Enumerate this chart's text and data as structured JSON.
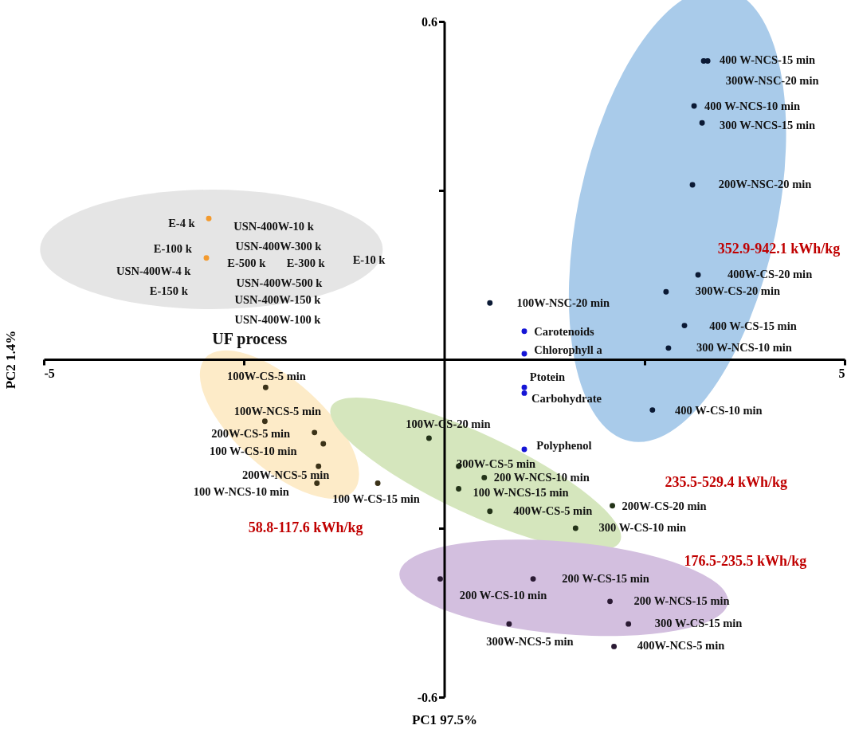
{
  "chart_data": {
    "type": "scatter",
    "xlabel": "PC1 97.5%",
    "ylabel": "PC2 1.4%",
    "xlim": [
      -5,
      5
    ],
    "ylim": [
      -0.6,
      0.6
    ],
    "xticks": [
      -5,
      {
        "value": -2.5,
        "label": null
      },
      {
        "value": 2.5,
        "label": null
      },
      5
    ],
    "yticks": [
      -0.6,
      {
        "value": -0.3,
        "label": null
      },
      {
        "value": 0.3,
        "label": null
      },
      0.6
    ],
    "marker": "circle",
    "series": [
      {
        "color": "#f39a2e",
        "x": [
          -2.94,
          -2.97
        ],
        "values": [
          0.25,
          0.18
        ]
      },
      {
        "color": "#1515d6",
        "x": [
          1.0,
          1.0,
          1.0,
          1.0,
          1.0
        ],
        "values": [
          0.05,
          0.01,
          -0.05,
          -0.06,
          -0.16
        ]
      },
      {
        "color": "#0b1a35",
        "x": [
          3.24,
          3.29,
          3.12,
          3.22,
          3.1,
          3.17,
          2.77,
          3.0,
          2.8,
          2.6,
          0.57
        ],
        "values": [
          0.53,
          0.53,
          0.45,
          0.42,
          0.31,
          0.15,
          0.12,
          0.06,
          0.02,
          -0.09,
          0.1
        ]
      },
      {
        "color": "#3b3218",
        "x": [
          -2.23,
          -2.24,
          -1.62,
          -1.51,
          -1.57,
          -1.59,
          -0.83
        ],
        "values": [
          -0.05,
          -0.11,
          -0.13,
          -0.15,
          -0.19,
          -0.22,
          -0.22
        ]
      },
      {
        "color": "#233318",
        "x": [
          -0.19,
          0.18,
          0.5,
          0.18,
          0.57,
          2.1,
          1.64
        ],
        "values": [
          -0.14,
          -0.19,
          -0.21,
          -0.23,
          -0.27,
          -0.26,
          -0.3
        ]
      },
      {
        "color": "#2a1a33",
        "x": [
          1.11,
          -0.05,
          2.07,
          0.81,
          2.3,
          2.12
        ],
        "values": [
          -0.39,
          -0.39,
          -0.43,
          -0.47,
          -0.47,
          -0.51
        ]
      }
    ],
    "annotations": [
      {
        "text": "400 W-NCS-15 min",
        "x": 3.24,
        "y": 0.53
      },
      {
        "text": "300W-NSC-20 min",
        "x": 3.29,
        "y": 0.53
      },
      {
        "text": "400 W-NCS-10 min",
        "x": 3.12,
        "y": 0.45
      },
      {
        "text": "300 W-NCS-15 min",
        "x": 3.22,
        "y": 0.42
      },
      {
        "text": "200W-NSC-20 min",
        "x": 3.1,
        "y": 0.31
      },
      {
        "text": "400W-CS-20 min",
        "x": 3.17,
        "y": 0.15
      },
      {
        "text": "300W-CS-20 min",
        "x": 2.77,
        "y": 0.12
      },
      {
        "text": "400 W-CS-15 min",
        "x": 3.0,
        "y": 0.06
      },
      {
        "text": "300 W-NCS-10 min",
        "x": 2.8,
        "y": 0.02
      },
      {
        "text": "400 W-CS-10 min",
        "x": 2.6,
        "y": -0.09
      },
      {
        "text": "100W-NSC-20 min",
        "x": 0.57,
        "y": 0.1
      },
      {
        "text": "Carotenoids",
        "x": 1.0,
        "y": 0.05
      },
      {
        "text": "Chlorophyll a",
        "x": 1.0,
        "y": 0.01
      },
      {
        "text": "Ptotein",
        "x": 1.0,
        "y": -0.05
      },
      {
        "text": "Carbohydrate",
        "x": 1.0,
        "y": -0.06
      },
      {
        "text": "Polyphenol",
        "x": 1.0,
        "y": -0.16
      },
      {
        "text": "100W-CS-5 min",
        "x": -2.23,
        "y": -0.05
      },
      {
        "text": "100W-NCS-5 min",
        "x": -2.24,
        "y": -0.11
      },
      {
        "text": "200W-CS-5 min",
        "x": -1.62,
        "y": -0.13
      },
      {
        "text": "100 W-CS-10 min",
        "x": -1.51,
        "y": -0.15
      },
      {
        "text": "200W-NCS-5 min",
        "x": -1.57,
        "y": -0.19
      },
      {
        "text": "100 W-NCS-10 min",
        "x": -1.59,
        "y": -0.22
      },
      {
        "text": "100 W-CS-15 min",
        "x": -0.83,
        "y": -0.22
      },
      {
        "text": "100W-CS-20 min",
        "x": -0.19,
        "y": -0.14
      },
      {
        "text": "300W-CS-5 min",
        "x": 0.18,
        "y": -0.19
      },
      {
        "text": "200 W-NCS-10 min",
        "x": 0.5,
        "y": -0.21
      },
      {
        "text": "100 W-NCS-15 min",
        "x": 0.18,
        "y": -0.23
      },
      {
        "text": "400W-CS-5 min",
        "x": 0.57,
        "y": -0.27
      },
      {
        "text": "200W-CS-20 min",
        "x": 2.1,
        "y": -0.26
      },
      {
        "text": "300 W-CS-10 min",
        "x": 1.64,
        "y": -0.3
      },
      {
        "text": "200 W-CS-15 min",
        "x": 1.11,
        "y": -0.39
      },
      {
        "text": "200 W-CS-10 min",
        "x": -0.05,
        "y": -0.39
      },
      {
        "text": "200 W-NCS-15 min",
        "x": 2.07,
        "y": -0.43
      },
      {
        "text": "300W-NCS-5 min",
        "x": 0.81,
        "y": -0.47
      },
      {
        "text": "300 W-CS-15 min",
        "x": 2.3,
        "y": -0.47
      },
      {
        "text": "400W-NCS-5 min",
        "x": 2.12,
        "y": -0.51
      },
      "E-4 k",
      "USN-400W-10 k",
      "E-100 k",
      "USN-400W-300 k",
      "E-500 k",
      "E-300 k",
      "E-10 k",
      "USN-400W-4 k",
      "USN-400W-500 k",
      "E-150 k",
      "USN-400W-150 k",
      "USN-400W-100 k",
      "UF process",
      "352.9-942.1 kWh/kg",
      "58.8-117.6 kWh/kg",
      "235.5-529.4 kWh/kg",
      "176.5-235.5 kWh/kg"
    ]
  }
}
